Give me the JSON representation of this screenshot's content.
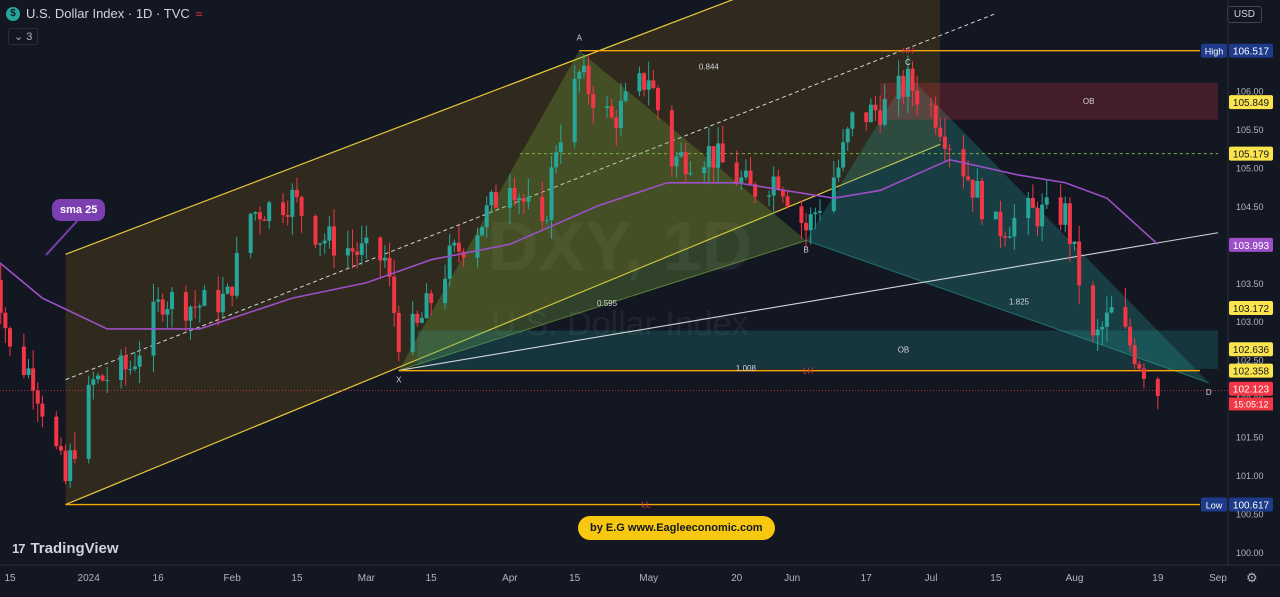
{
  "header": {
    "symbol_letter": "$",
    "title": "U.S. Dollar Index · 1D · TVC",
    "indicator_toggle": "⌄ 3"
  },
  "currency": "USD",
  "brand": {
    "name": "TradingView",
    "logo": "17"
  },
  "author": "by E.G www.Eagleeconomic.com",
  "colors": {
    "up": "#26a69a",
    "down": "#f23645",
    "sma": "#9c4fc6",
    "level": "#f7a600",
    "channel": "#e8c93a",
    "ob": "#f23645",
    "trend": "#d1d4dc"
  },
  "chart_data": {
    "type": "candlestick",
    "watermark": {
      "symbol": "DXY, 1D",
      "name": "U.S. Dollar Index"
    },
    "y_range": [
      99.8,
      106.9
    ],
    "y_ticks": [
      100.0,
      100.5,
      101.0,
      101.5,
      102.0,
      102.5,
      103.0,
      103.5,
      104.0,
      104.5,
      105.0,
      105.5,
      106.0,
      106.5
    ],
    "x_ticks": [
      {
        "d": "2023-12-15",
        "label": "15"
      },
      {
        "d": "2024-01-01",
        "label": "2024"
      },
      {
        "d": "2024-01-16",
        "label": "16"
      },
      {
        "d": "2024-02-01",
        "label": "Feb"
      },
      {
        "d": "2024-02-15",
        "label": "15"
      },
      {
        "d": "2024-03-01",
        "label": "Mar"
      },
      {
        "d": "2024-03-15",
        "label": "15"
      },
      {
        "d": "2024-04-01",
        "label": "Apr"
      },
      {
        "d": "2024-04-15",
        "label": "15"
      },
      {
        "d": "2024-05-01",
        "label": "May"
      },
      {
        "d": "2024-05-20",
        "label": "20"
      },
      {
        "d": "2024-06-01",
        "label": "Jun"
      },
      {
        "d": "2024-06-17",
        "label": "17"
      },
      {
        "d": "2024-07-01",
        "label": "Jul"
      },
      {
        "d": "2024-07-15",
        "label": "15"
      },
      {
        "d": "2024-08-01",
        "label": "Aug"
      },
      {
        "d": "2024-08-19",
        "label": "19"
      },
      {
        "d": "2024-09-01",
        "label": "Sep"
      }
    ],
    "close_path": [
      [
        "2023-12-11",
        104.0
      ],
      [
        "2023-12-15",
        102.6
      ],
      [
        "2023-12-20",
        102.3
      ],
      [
        "2023-12-27",
        100.9
      ],
      [
        "2023-12-28",
        101.2
      ],
      [
        "2024-01-02",
        102.2
      ],
      [
        "2024-01-10",
        102.4
      ],
      [
        "2024-01-17",
        103.3
      ],
      [
        "2024-01-24",
        103.2
      ],
      [
        "2024-01-31",
        103.3
      ],
      [
        "2024-02-05",
        104.4
      ],
      [
        "2024-02-14",
        104.6
      ],
      [
        "2024-02-20",
        104.1
      ],
      [
        "2024-02-28",
        103.9
      ],
      [
        "2024-03-05",
        103.8
      ],
      [
        "2024-03-08",
        102.8
      ],
      [
        "2024-03-12",
        102.9
      ],
      [
        "2024-03-19",
        103.8
      ],
      [
        "2024-03-26",
        104.3
      ],
      [
        "2024-04-01",
        104.9
      ],
      [
        "2024-04-08",
        104.1
      ],
      [
        "2024-04-11",
        105.3
      ],
      [
        "2024-04-16",
        106.2
      ],
      [
        "2024-04-23",
        105.6
      ],
      [
        "2024-05-01",
        106.2
      ],
      [
        "2024-05-06",
        105.1
      ],
      [
        "2024-05-14",
        105.2
      ],
      [
        "2024-05-23",
        104.7
      ],
      [
        "2024-05-29",
        104.9
      ],
      [
        "2024-06-04",
        104.2
      ],
      [
        "2024-06-11",
        105.0
      ],
      [
        "2024-06-14",
        105.6
      ],
      [
        "2024-06-21",
        105.8
      ],
      [
        "2024-06-26",
        106.1
      ],
      [
        "2024-07-02",
        105.7
      ],
      [
        "2024-07-08",
        105.0
      ],
      [
        "2024-07-15",
        104.2
      ],
      [
        "2024-07-22",
        104.4
      ],
      [
        "2024-07-30",
        104.4
      ],
      [
        "2024-08-05",
        102.7
      ],
      [
        "2024-08-09",
        103.1
      ],
      [
        "2024-08-14",
        102.6
      ],
      [
        "2024-08-19",
        102.1
      ]
    ],
    "sma": {
      "name": "sma 25",
      "points": [
        [
          "2023-11-27",
          104.4
        ],
        [
          "2023-12-10",
          103.9
        ],
        [
          "2023-12-22",
          103.3
        ],
        [
          "2024-01-05",
          102.9
        ],
        [
          "2024-01-25",
          102.9
        ],
        [
          "2024-02-14",
          103.3
        ],
        [
          "2024-03-01",
          103.5
        ],
        [
          "2024-03-15",
          103.8
        ],
        [
          "2024-04-01",
          104.0
        ],
        [
          "2024-04-20",
          104.5
        ],
        [
          "2024-05-05",
          104.8
        ],
        [
          "2024-05-20",
          104.8
        ],
        [
          "2024-06-10",
          104.6
        ],
        [
          "2024-06-20",
          104.7
        ],
        [
          "2024-07-05",
          105.1
        ],
        [
          "2024-07-20",
          104.9
        ],
        [
          "2024-07-30",
          104.8
        ],
        [
          "2024-08-08",
          104.6
        ],
        [
          "2024-08-19",
          104.0
        ]
      ]
    },
    "levels": [
      {
        "label": "High",
        "value": 106.517,
        "color": "#f7a600",
        "from": "2024-04-16",
        "text": ""
      },
      {
        "label": "Low",
        "value": 100.617,
        "color": "#f7a600",
        "from": "2023-12-27",
        "text": "LL"
      },
      {
        "label": "",
        "value": 102.358,
        "color": "#f7a600",
        "from": "2024-03-08",
        "text": "LH"
      }
    ],
    "price_tags": [
      {
        "value": 106.517,
        "label": "106.517",
        "bg": "#1e3a8a",
        "fg": "#ffffff",
        "side": "High"
      },
      {
        "value": 105.849,
        "label": "105.849",
        "bg": "#fbe44c",
        "fg": "#131722",
        "side": ""
      },
      {
        "value": 105.179,
        "label": "105.179",
        "bg": "#fbe44c",
        "fg": "#131722",
        "side": ""
      },
      {
        "value": 103.993,
        "label": "103.993",
        "bg": "#9c4fc6",
        "fg": "#ffffff",
        "side": ""
      },
      {
        "value": 103.172,
        "label": "103.172",
        "bg": "#fbe44c",
        "fg": "#131722",
        "side": ""
      },
      {
        "value": 102.636,
        "label": "102.636",
        "bg": "#fbe44c",
        "fg": "#131722",
        "side": ""
      },
      {
        "value": 102.358,
        "label": "102.358",
        "bg": "#fbe44c",
        "fg": "#131722",
        "side": ""
      },
      {
        "value": 102.123,
        "label": "102.123",
        "bg": "#f23645",
        "fg": "#ffffff",
        "side": ""
      },
      {
        "value": 100.617,
        "label": "100.617",
        "bg": "#1e3a8a",
        "fg": "#ffffff",
        "side": "Low"
      }
    ],
    "countdown": "15:05:12",
    "pattern_points": [
      {
        "label": "X",
        "d": "2024-03-08",
        "v": 102.36
      },
      {
        "label": "A",
        "d": "2024-04-16",
        "v": 106.52
      },
      {
        "label": "B",
        "d": "2024-06-04",
        "v": 104.05
      },
      {
        "label": "C",
        "d": "2024-06-26",
        "v": 106.2
      },
      {
        "label": "D",
        "d": "2024-08-30",
        "v": 102.2
      }
    ],
    "ratios": [
      {
        "label": "0.844",
        "d": "2024-05-14",
        "v": 106.27
      },
      {
        "label": "0.595",
        "d": "2024-04-22",
        "v": 103.2
      },
      {
        "label": "1.825",
        "d": "2024-07-20",
        "v": 103.22
      },
      {
        "label": "1.008",
        "d": "2024-05-22",
        "v": 102.35
      }
    ],
    "order_blocks": [
      {
        "label": "OB",
        "top": 106.1,
        "bottom": 105.62,
        "from": "2024-06-20",
        "to": "2024-09-01",
        "color": "#f23645"
      },
      {
        "label": "OB",
        "top": 102.88,
        "bottom": 102.38,
        "from": "2024-03-12",
        "to": "2024-09-01",
        "color": "#26a69a"
      }
    ],
    "marks": [
      {
        "label": "HH",
        "d": "2024-06-26",
        "v": 106.52
      }
    ],
    "dashed_level": {
      "value": 105.179,
      "from": "2024-04-01",
      "to": "2024-09-01"
    },
    "channel": {
      "lower": [
        [
          "2023-12-27",
          100.617
        ],
        [
          "2024-07-03",
          105.3
        ]
      ],
      "upper": [
        [
          "2023-12-27",
          103.87
        ],
        [
          "2024-05-20",
          107.2
        ]
      ],
      "mid": [
        [
          "2023-12-27",
          102.24
        ],
        [
          "2024-07-15",
          107.0
        ]
      ]
    },
    "trendline": [
      [
        "2024-03-08",
        102.36
      ],
      [
        "2024-09-01",
        104.15
      ]
    ]
  }
}
